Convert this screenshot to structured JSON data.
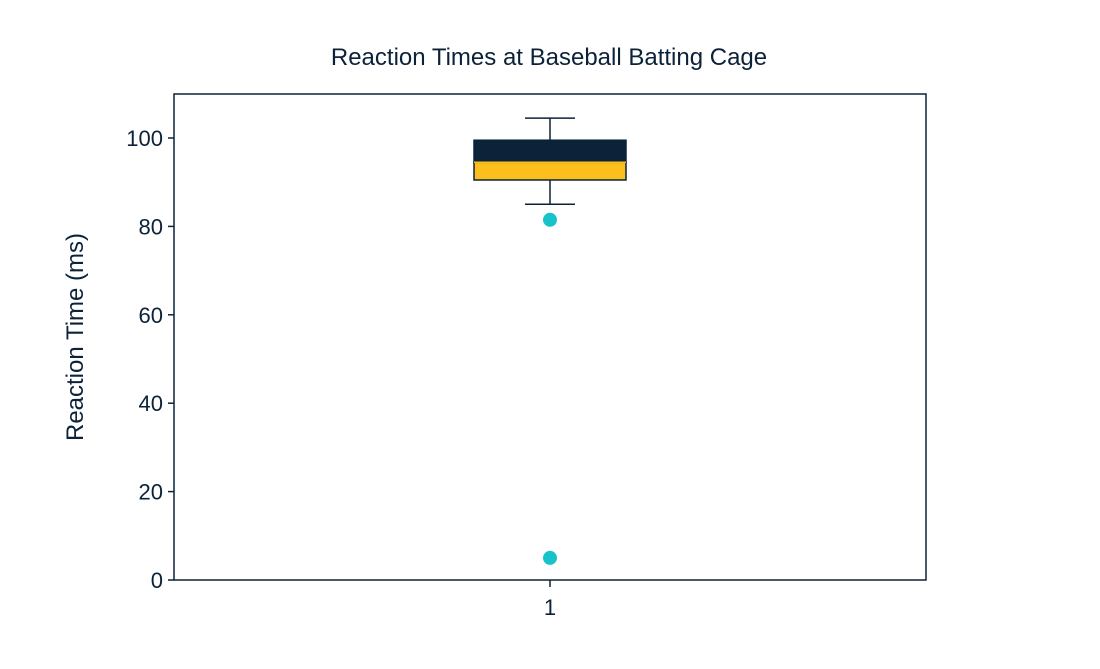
{
  "chart_data": {
    "type": "box",
    "title": "Reaction Times at Baseball Batting Cage",
    "xlabel": "",
    "ylabel": "Reaction Time (ms)",
    "ylim": [
      0,
      100
    ],
    "yticks": [
      0,
      20,
      40,
      60,
      80,
      100
    ],
    "xticks": [
      "1"
    ],
    "grid": false,
    "boxes": [
      {
        "category": "1",
        "whisker_low": 85,
        "q1": 90.5,
        "median": 94.5,
        "q3": 99.5,
        "whisker_high": 104.5,
        "outliers": [
          81.5,
          5
        ]
      }
    ],
    "colors": {
      "upper_box": "#0b2239",
      "lower_box": "#fbbf1e",
      "outlier": "#17c3c9",
      "axis": "#0b2239"
    }
  }
}
